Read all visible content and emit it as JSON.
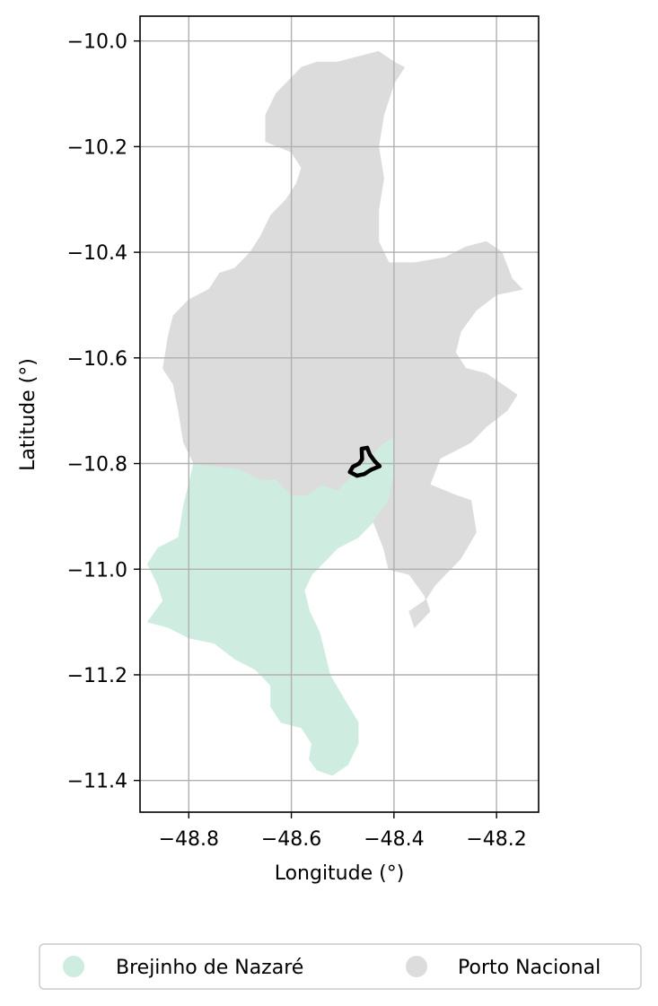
{
  "chart_data": {
    "type": "choropleth-map",
    "xlabel": "Longitude (°)",
    "ylabel": "Latitude (°)",
    "xlim": [
      -48.895,
      -48.118
    ],
    "ylim": [
      -11.46,
      -9.953
    ],
    "grid": true,
    "x_ticks": [
      -48.8,
      -48.6,
      -48.4,
      -48.2
    ],
    "x_tick_labels": [
      "−48.8",
      "−48.6",
      "−48.4",
      "−48.2"
    ],
    "y_ticks": [
      -10.0,
      -10.2,
      -10.4,
      -10.6,
      -10.8,
      -11.0,
      -11.2,
      -11.4
    ],
    "y_tick_labels": [
      "−10.0",
      "−10.2",
      "−10.4",
      "−10.6",
      "−10.8",
      "−11.0",
      "−11.2",
      "−11.4"
    ],
    "legend_position": "bottom-center",
    "regions": [
      {
        "name": "Brejinho de Nazaré",
        "color": "#cfece0",
        "outline": [
          [
            -48.79,
            -10.8
          ],
          [
            -48.7,
            -10.81
          ],
          [
            -48.66,
            -10.83
          ],
          [
            -48.63,
            -10.83
          ],
          [
            -48.6,
            -10.86
          ],
          [
            -48.57,
            -10.86
          ],
          [
            -48.54,
            -10.84
          ],
          [
            -48.51,
            -10.85
          ],
          [
            -48.48,
            -10.82
          ],
          [
            -48.45,
            -10.79
          ],
          [
            -48.42,
            -10.76
          ],
          [
            -48.4,
            -10.75
          ],
          [
            -48.4,
            -10.82
          ],
          [
            -48.41,
            -10.87
          ],
          [
            -48.44,
            -10.91
          ],
          [
            -48.47,
            -10.94
          ],
          [
            -48.51,
            -10.96
          ],
          [
            -48.53,
            -10.98
          ],
          [
            -48.56,
            -11.01
          ],
          [
            -48.575,
            -11.04
          ],
          [
            -48.565,
            -11.08
          ],
          [
            -48.545,
            -11.12
          ],
          [
            -48.535,
            -11.16
          ],
          [
            -48.525,
            -11.2
          ],
          [
            -48.495,
            -11.25
          ],
          [
            -48.47,
            -11.29
          ],
          [
            -48.47,
            -11.33
          ],
          [
            -48.49,
            -11.37
          ],
          [
            -48.52,
            -11.39
          ],
          [
            -48.55,
            -11.38
          ],
          [
            -48.565,
            -11.36
          ],
          [
            -48.56,
            -11.33
          ],
          [
            -48.58,
            -11.3
          ],
          [
            -48.62,
            -11.29
          ],
          [
            -48.64,
            -11.26
          ],
          [
            -48.64,
            -11.22
          ],
          [
            -48.67,
            -11.19
          ],
          [
            -48.71,
            -11.17
          ],
          [
            -48.75,
            -11.14
          ],
          [
            -48.8,
            -11.13
          ],
          [
            -48.84,
            -11.11
          ],
          [
            -48.88,
            -11.1
          ],
          [
            -48.85,
            -11.06
          ],
          [
            -48.86,
            -11.03
          ],
          [
            -48.88,
            -10.99
          ],
          [
            -48.86,
            -10.96
          ],
          [
            -48.82,
            -10.94
          ],
          [
            -48.81,
            -10.88
          ]
        ]
      },
      {
        "name": "Porto Nacional",
        "color": "#dcdcdc",
        "outline": [
          [
            -48.58,
            -10.05
          ],
          [
            -48.55,
            -10.04
          ],
          [
            -48.51,
            -10.04
          ],
          [
            -48.47,
            -10.03
          ],
          [
            -48.43,
            -10.02
          ],
          [
            -48.4,
            -10.04
          ],
          [
            -48.38,
            -10.05
          ],
          [
            -48.4,
            -10.08
          ],
          [
            -48.42,
            -10.14
          ],
          [
            -48.43,
            -10.2
          ],
          [
            -48.42,
            -10.26
          ],
          [
            -48.43,
            -10.32
          ],
          [
            -48.43,
            -10.38
          ],
          [
            -48.41,
            -10.42
          ],
          [
            -48.36,
            -10.42
          ],
          [
            -48.3,
            -10.41
          ],
          [
            -48.26,
            -10.39
          ],
          [
            -48.22,
            -10.38
          ],
          [
            -48.19,
            -10.4
          ],
          [
            -48.17,
            -10.45
          ],
          [
            -48.15,
            -10.47
          ],
          [
            -48.2,
            -10.48
          ],
          [
            -48.24,
            -10.51
          ],
          [
            -48.27,
            -10.55
          ],
          [
            -48.28,
            -10.59
          ],
          [
            -48.26,
            -10.62
          ],
          [
            -48.22,
            -10.63
          ],
          [
            -48.19,
            -10.65
          ],
          [
            -48.16,
            -10.67
          ],
          [
            -48.18,
            -10.7
          ],
          [
            -48.22,
            -10.73
          ],
          [
            -48.25,
            -10.76
          ],
          [
            -48.31,
            -10.79
          ],
          [
            -48.33,
            -10.84
          ],
          [
            -48.28,
            -10.86
          ],
          [
            -48.25,
            -10.87
          ],
          [
            -48.24,
            -10.93
          ],
          [
            -48.27,
            -10.98
          ],
          [
            -48.29,
            -11.0
          ],
          [
            -48.32,
            -11.03
          ],
          [
            -48.34,
            -11.06
          ],
          [
            -48.37,
            -11.08
          ],
          [
            -48.36,
            -11.11
          ],
          [
            -48.33,
            -11.08
          ],
          [
            -48.34,
            -11.05
          ],
          [
            -48.37,
            -11.01
          ],
          [
            -48.41,
            -11.0
          ],
          [
            -48.42,
            -10.96
          ],
          [
            -48.44,
            -10.91
          ],
          [
            -48.41,
            -10.87
          ],
          [
            -48.4,
            -10.82
          ],
          [
            -48.4,
            -10.75
          ],
          [
            -48.42,
            -10.76
          ],
          [
            -48.45,
            -10.79
          ],
          [
            -48.48,
            -10.82
          ],
          [
            -48.51,
            -10.85
          ],
          [
            -48.54,
            -10.84
          ],
          [
            -48.57,
            -10.86
          ],
          [
            -48.6,
            -10.86
          ],
          [
            -48.63,
            -10.83
          ],
          [
            -48.66,
            -10.83
          ],
          [
            -48.7,
            -10.81
          ],
          [
            -48.79,
            -10.8
          ],
          [
            -48.81,
            -10.76
          ],
          [
            -48.82,
            -10.7
          ],
          [
            -48.83,
            -10.65
          ],
          [
            -48.85,
            -10.62
          ],
          [
            -48.84,
            -10.56
          ],
          [
            -48.83,
            -10.52
          ],
          [
            -48.8,
            -10.49
          ],
          [
            -48.76,
            -10.47
          ],
          [
            -48.74,
            -10.44
          ],
          [
            -48.71,
            -10.43
          ],
          [
            -48.68,
            -10.4
          ],
          [
            -48.66,
            -10.37
          ],
          [
            -48.64,
            -10.33
          ],
          [
            -48.61,
            -10.3
          ],
          [
            -48.59,
            -10.27
          ],
          [
            -48.58,
            -10.24
          ],
          [
            -48.6,
            -10.21
          ],
          [
            -48.65,
            -10.19
          ],
          [
            -48.65,
            -10.14
          ],
          [
            -48.63,
            -10.1
          ]
        ]
      }
    ],
    "overlay": {
      "color": "#000000",
      "outline": [
        [
          -48.463,
          -10.772
        ],
        [
          -48.452,
          -10.77
        ],
        [
          -48.447,
          -10.783
        ],
        [
          -48.438,
          -10.795
        ],
        [
          -48.428,
          -10.805
        ],
        [
          -48.445,
          -10.812
        ],
        [
          -48.458,
          -10.82
        ],
        [
          -48.472,
          -10.823
        ],
        [
          -48.486,
          -10.816
        ],
        [
          -48.48,
          -10.806
        ],
        [
          -48.468,
          -10.8
        ],
        [
          -48.462,
          -10.792
        ]
      ]
    }
  },
  "legend": {
    "items": [
      {
        "label": "Brejinho de Nazaré",
        "color": "#cfece0"
      },
      {
        "label": "Porto Nacional",
        "color": "#dcdcdc"
      }
    ]
  }
}
